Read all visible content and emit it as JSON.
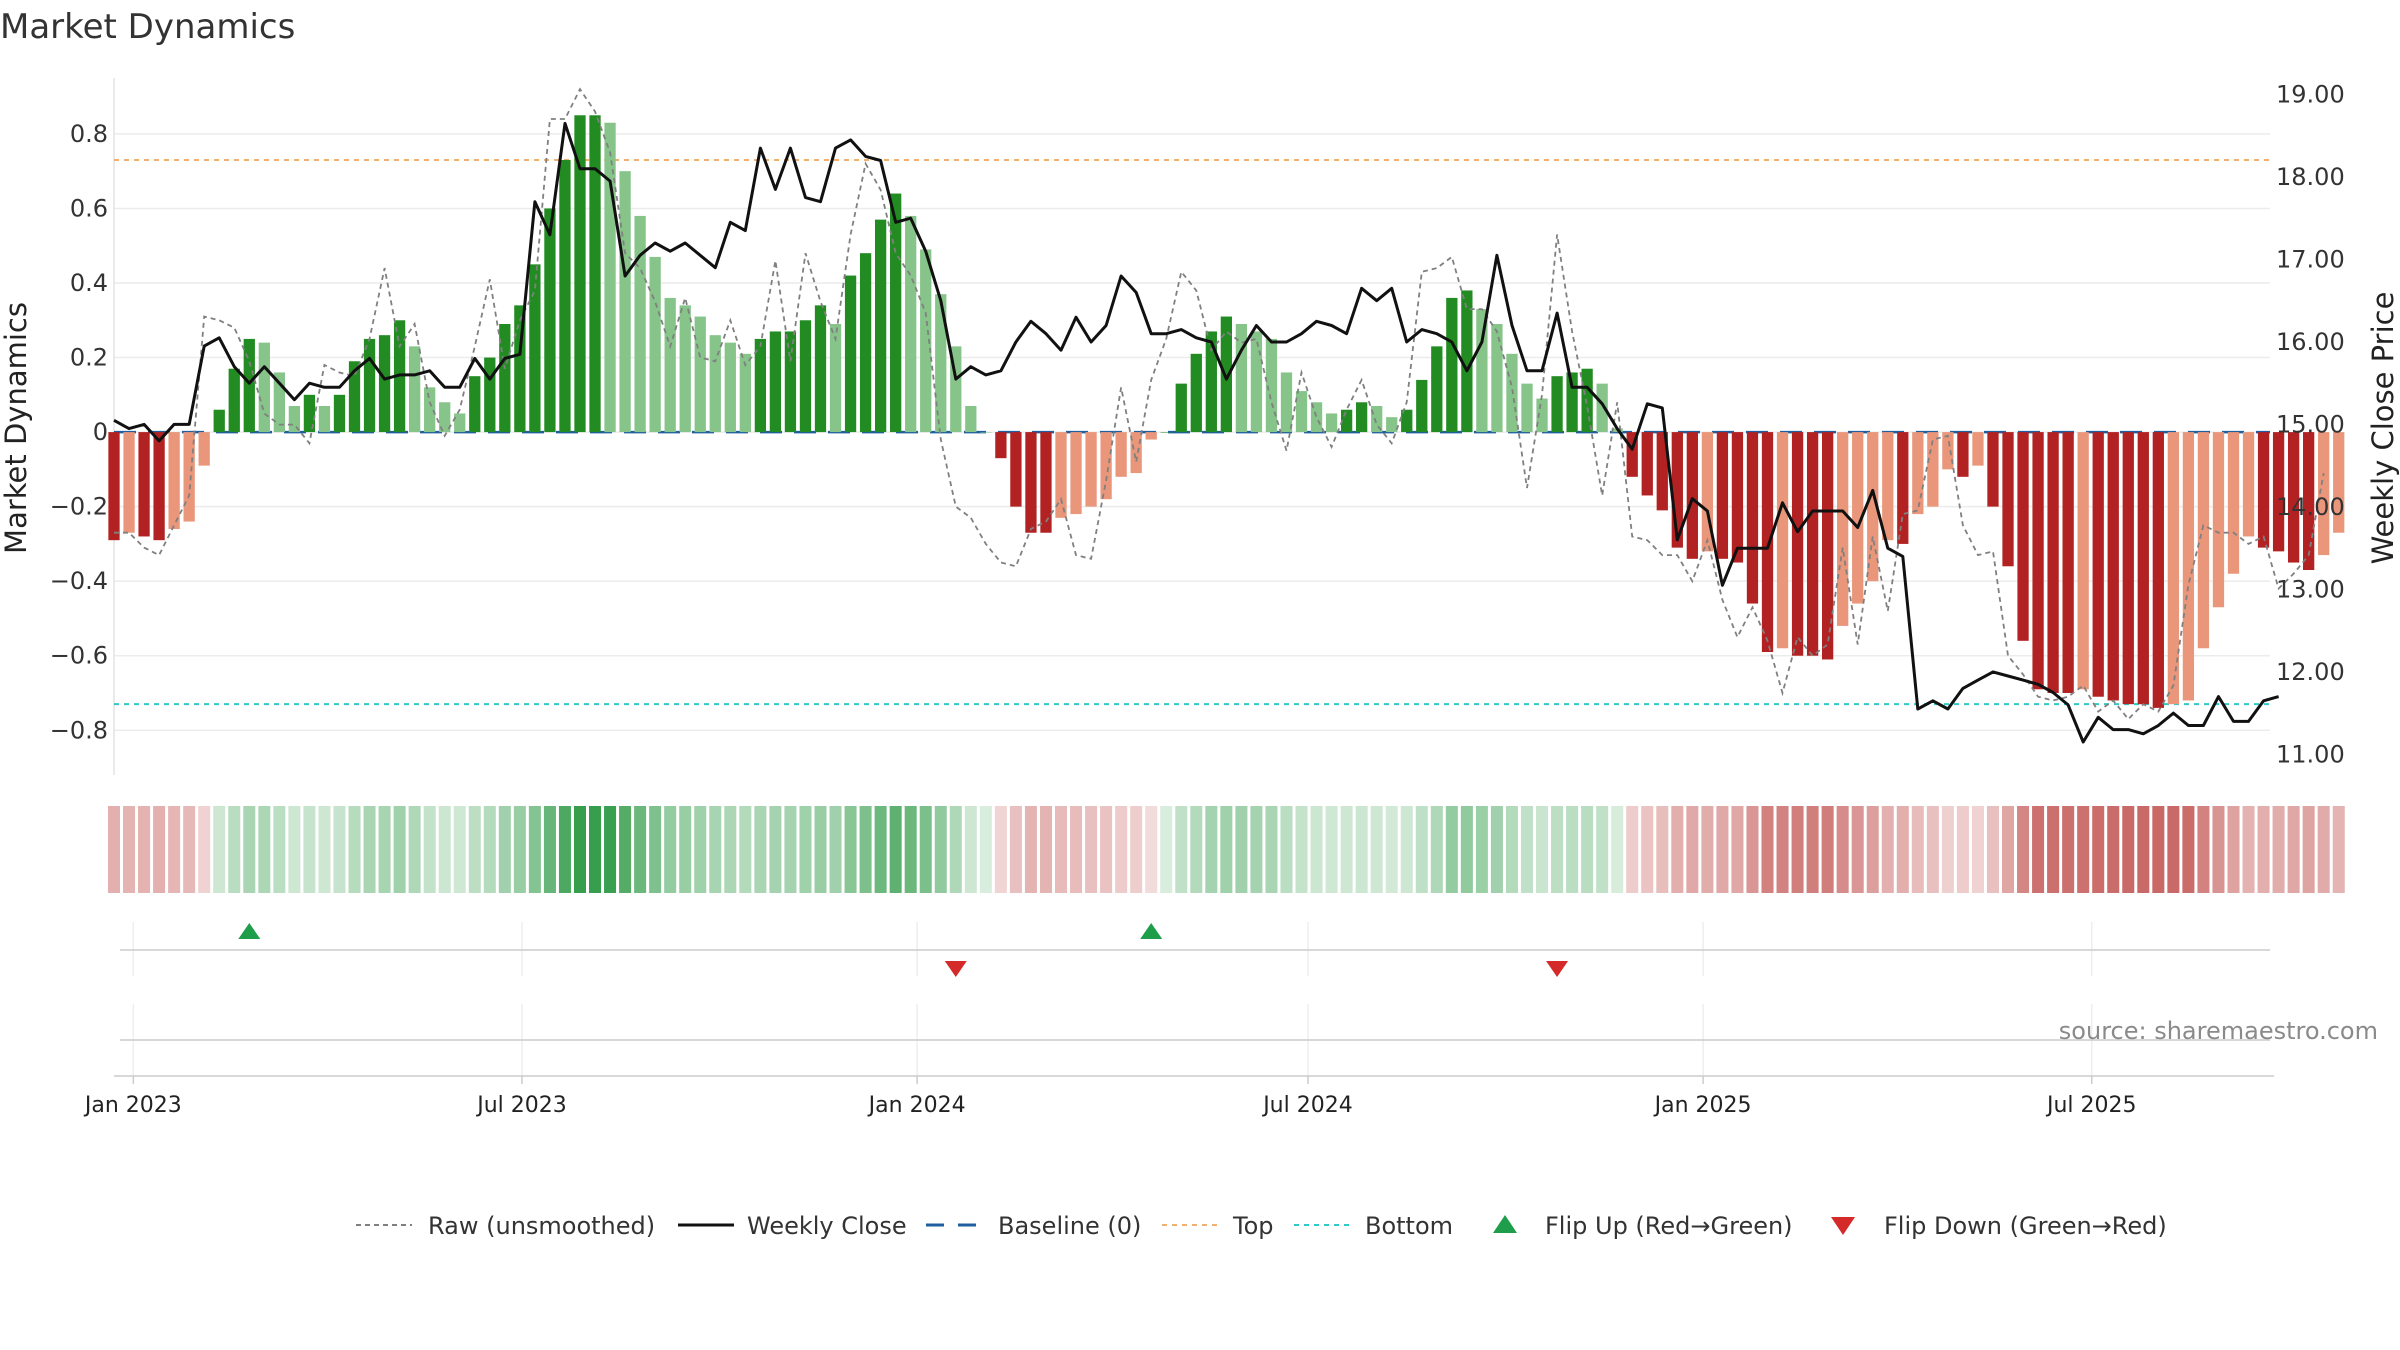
{
  "chart_data": {
    "type": "bar",
    "title": "Market Dynamics",
    "ylabel_left": "Market Dynamics",
    "ylabel_right": "Weekly Close Price",
    "ylim_left": [
      -0.92,
      0.95
    ],
    "ylim_right": [
      10.75,
      19.2
    ],
    "yticks_left": [
      "0.8",
      "0.6",
      "0.4",
      "0.2",
      "0",
      "−0.2",
      "−0.4",
      "−0.6",
      "−0.8"
    ],
    "yticks_left_values": [
      0.8,
      0.6,
      0.4,
      0.2,
      0,
      -0.2,
      -0.4,
      -0.6,
      -0.8
    ],
    "yticks_right": [
      "19.00",
      "18.00",
      "17.00",
      "16.00",
      "15.00",
      "14.00",
      "13.00",
      "12.00",
      "11.00"
    ],
    "yticks_right_values": [
      19,
      18,
      17,
      16,
      15,
      14,
      13,
      12,
      11
    ],
    "x_start": "2022-12-23",
    "x_end": "2025-09-22",
    "x_first_week": "2022-12-23",
    "x_tick_labels": [
      "Jan 2023",
      "Jul 2023",
      "Jan 2024",
      "Jul 2024",
      "Jan 2025",
      "Jul 2025"
    ],
    "x_tick_dates": [
      "2023-01-01",
      "2023-07-01",
      "2024-01-01",
      "2024-07-01",
      "2025-01-01",
      "2025-07-01"
    ],
    "top_level": 0.73,
    "bottom_level": -0.73,
    "baseline": 0,
    "flip_up_dates": [
      "2023-02-24",
      "2024-04-19"
    ],
    "flip_down_dates": [
      "2024-01-19",
      "2024-10-25"
    ],
    "series": [
      {
        "name": "Market Dynamics",
        "values": [
          -0.29,
          -0.27,
          -0.28,
          -0.29,
          -0.26,
          -0.24,
          -0.09,
          0.06,
          0.17,
          0.25,
          0.24,
          0.16,
          0.07,
          0.1,
          0.07,
          0.1,
          0.19,
          0.25,
          0.26,
          0.3,
          0.23,
          0.12,
          0.08,
          0.05,
          0.15,
          0.2,
          0.29,
          0.34,
          0.45,
          0.6,
          0.73,
          0.85,
          0.85,
          0.83,
          0.7,
          0.58,
          0.47,
          0.36,
          0.34,
          0.31,
          0.26,
          0.24,
          0.21,
          0.25,
          0.27,
          0.27,
          0.3,
          0.34,
          0.29,
          0.42,
          0.48,
          0.57,
          0.64,
          0.58,
          0.49,
          0.37,
          0.23,
          0.07,
          0,
          -0.07,
          -0.2,
          -0.27,
          -0.27,
          -0.23,
          -0.22,
          -0.2,
          -0.18,
          -0.12,
          -0.11,
          -0.02,
          0,
          0.13,
          0.21,
          0.27,
          0.31,
          0.29,
          0.27,
          0.25,
          0.16,
          0.11,
          0.08,
          0.05,
          0.06,
          0.08,
          0.07,
          0.04,
          0.06,
          0.14,
          0.23,
          0.36,
          0.38,
          0.33,
          0.29,
          0.21,
          0.13,
          0.09,
          0.15,
          0.16,
          0.17,
          0.13,
          0.01,
          -0.12,
          -0.17,
          -0.21,
          -0.31,
          -0.34,
          -0.32,
          -0.34,
          -0.35,
          -0.46,
          -0.59,
          -0.58,
          -0.6,
          -0.6,
          -0.61,
          -0.52,
          -0.46,
          -0.4,
          -0.29,
          -0.3,
          -0.22,
          -0.2,
          -0.1,
          -0.12,
          -0.09,
          -0.2,
          -0.36,
          -0.56,
          -0.69,
          -0.7,
          -0.7,
          -0.69,
          -0.71,
          -0.72,
          -0.73,
          -0.73,
          -0.74,
          -0.73,
          -0.72,
          -0.58,
          -0.47,
          -0.38,
          -0.28,
          -0.31,
          -0.32,
          -0.35,
          -0.37,
          -0.33,
          -0.27
        ]
      },
      {
        "name": "Raw (unsmoothed)",
        "values": [
          -0.27,
          -0.27,
          -0.31,
          -0.33,
          -0.25,
          -0.17,
          0.31,
          0.3,
          0.28,
          0.19,
          0.05,
          0.02,
          0.02,
          -0.03,
          0.18,
          0.16,
          0.15,
          0.25,
          0.44,
          0.23,
          0.29,
          0.08,
          -0.01,
          0.06,
          0.23,
          0.41,
          0.17,
          0.3,
          0.38,
          0.84,
          0.84,
          0.92,
          0.86,
          0.75,
          0.48,
          0.44,
          0.35,
          0.23,
          0.36,
          0.2,
          0.19,
          0.3,
          0.18,
          0.23,
          0.46,
          0.19,
          0.48,
          0.35,
          0.25,
          0.53,
          0.72,
          0.65,
          0.48,
          0.42,
          0.32,
          -0.02,
          -0.2,
          -0.23,
          -0.3,
          -0.35,
          -0.36,
          -0.26,
          -0.24,
          -0.18,
          -0.33,
          -0.34,
          -0.13,
          0.12,
          -0.08,
          0.14,
          0.25,
          0.43,
          0.38,
          0.22,
          0.27,
          0.24,
          0.25,
          0.08,
          -0.05,
          0.16,
          0.04,
          -0.04,
          0.06,
          0.14,
          0.02,
          -0.03,
          0.08,
          0.43,
          0.44,
          0.47,
          0.33,
          0.33,
          0.27,
          0.12,
          -0.15,
          0.1,
          0.53,
          0.27,
          0.07,
          -0.17,
          0.08,
          -0.28,
          -0.29,
          -0.33,
          -0.33,
          -0.4,
          -0.29,
          -0.45,
          -0.55,
          -0.47,
          -0.56,
          -0.7,
          -0.55,
          -0.6,
          -0.57,
          -0.31,
          -0.57,
          -0.28,
          -0.48,
          -0.22,
          -0.21,
          -0.02,
          -0.01,
          -0.25,
          -0.33,
          -0.32,
          -0.6,
          -0.65,
          -0.71,
          -0.72,
          -0.71,
          -0.68,
          -0.75,
          -0.72,
          -0.77,
          -0.73,
          -0.75,
          -0.68,
          -0.41,
          -0.25,
          -0.27,
          -0.27,
          -0.3,
          -0.28,
          -0.42,
          -0.38,
          -0.33,
          -0.11
        ]
      },
      {
        "name": "Weekly Close",
        "values": [
          15.05,
          14.95,
          15,
          14.8,
          15,
          15,
          15.95,
          16.05,
          15.7,
          15.5,
          15.7,
          15.5,
          15.3,
          15.5,
          15.45,
          15.45,
          15.65,
          15.8,
          15.55,
          15.6,
          15.6,
          15.65,
          15.45,
          15.45,
          15.8,
          15.55,
          15.8,
          15.85,
          17.7,
          17.3,
          18.65,
          18.1,
          18.1,
          17.95,
          16.8,
          17.05,
          17.2,
          17.1,
          17.2,
          17.05,
          16.9,
          17.45,
          17.35,
          18.35,
          17.85,
          18.35,
          17.75,
          17.7,
          18.35,
          18.45,
          18.25,
          18.2,
          17.45,
          17.5,
          17.1,
          16.5,
          15.55,
          15.7,
          15.6,
          15.65,
          16,
          16.25,
          16.1,
          15.9,
          16.3,
          16,
          16.2,
          16.8,
          16.6,
          16.1,
          16.1,
          16.15,
          16.05,
          16,
          15.55,
          15.9,
          16.2,
          16,
          16,
          16.1,
          16.25,
          16.2,
          16.1,
          16.65,
          16.5,
          16.65,
          16,
          16.15,
          16.1,
          16,
          15.65,
          16.0,
          17.05,
          16.2,
          15.65,
          15.65,
          16.35,
          15.45,
          15.45,
          15.25,
          14.95,
          14.7,
          15.25,
          15.2,
          13.6,
          14.1,
          13.95,
          13.05,
          13.5,
          13.5,
          13.5,
          14.05,
          13.7,
          13.95,
          13.95,
          13.95,
          13.75,
          14.2,
          13.5,
          13.4,
          11.55,
          11.65,
          11.55,
          11.8,
          11.9,
          12,
          11.95,
          11.9,
          11.85,
          11.75,
          11.6,
          11.15,
          11.45,
          11.3,
          11.3,
          11.25,
          11.35,
          11.5,
          11.35,
          11.35,
          11.7,
          11.4,
          11.4,
          11.65,
          11.7
        ]
      }
    ],
    "legend": [
      "Raw (unsmoothed)",
      "Weekly Close",
      "Baseline (0)",
      "Top",
      "Bottom",
      "Flip Up (Red→Green)",
      "Flip Down (Green→Red)"
    ],
    "legend_position": "bottom-center",
    "annotation": "source: sharemaestro.com",
    "colors": {
      "dark_green": "#228b22",
      "light_green": "#86c48a",
      "dark_red": "#b22222",
      "light_red": "#e9967a",
      "raw": "#808080",
      "close": "#111111",
      "baseline": "#1f5f9f",
      "top": "#f0b070",
      "bottom": "#30c8c8",
      "flip_up": "#1e9e4a",
      "flip_down": "#d42a2a"
    },
    "grid": true
  }
}
